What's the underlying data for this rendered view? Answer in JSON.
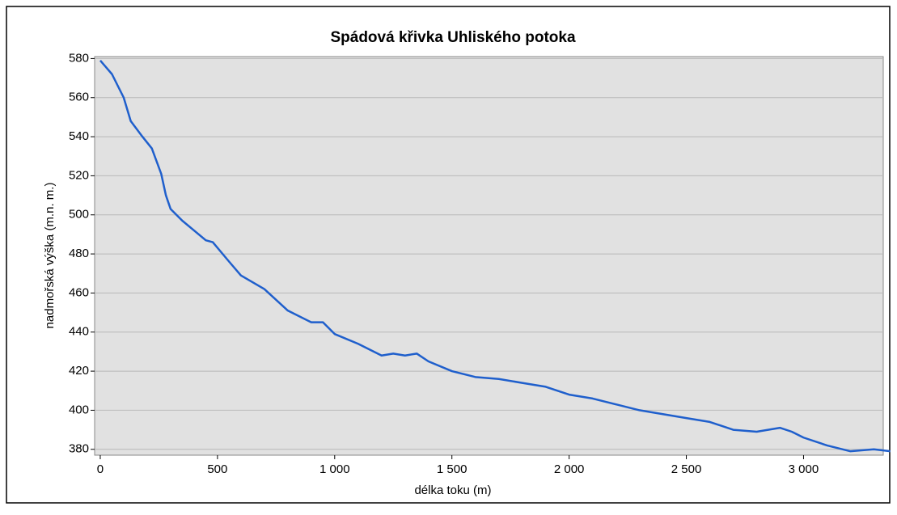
{
  "chart_data": {
    "type": "line",
    "title": "Spádová křivka Uhliského potoka",
    "x_label": "délka toku (m)",
    "y_label": "nadmořská výška (m.n. m.)",
    "x": [
      0,
      50,
      100,
      130,
      180,
      220,
      260,
      280,
      300,
      350,
      400,
      450,
      480,
      550,
      600,
      700,
      800,
      900,
      950,
      1000,
      1100,
      1200,
      1250,
      1300,
      1350,
      1400,
      1500,
      1600,
      1700,
      1800,
      1900,
      2000,
      2100,
      2200,
      2300,
      2400,
      2500,
      2600,
      2700,
      2800,
      2900,
      2950,
      3000,
      3100,
      3200,
      3300,
      3370
    ],
    "series": [
      {
        "color": "#1f5fcc",
        "values": [
          579,
          572,
          560,
          548,
          540,
          534,
          521,
          510,
          503,
          497,
          492,
          487,
          486,
          476,
          469,
          462,
          451,
          445,
          445,
          439,
          434,
          428,
          429,
          428,
          429,
          425,
          420,
          417,
          416,
          414,
          412,
          408,
          406,
          403,
          400,
          398,
          396,
          394,
          390,
          389,
          391,
          389,
          386,
          382,
          379,
          380,
          379
        ]
      }
    ],
    "xlim": [
      -24,
      3340
    ],
    "ylim": [
      377,
      581
    ],
    "xticks": [
      0,
      {
        "value": 500,
        "label": "500"
      },
      {
        "value": 1000,
        "label": "1 000"
      },
      {
        "value": 1500,
        "label": "1 500"
      },
      {
        "value": 2000,
        "label": "2 000"
      },
      {
        "value": 2500,
        "label": "2 500"
      },
      {
        "value": 3000,
        "label": "3 000"
      }
    ],
    "yticks": [
      380,
      400,
      420,
      440,
      460,
      480,
      500,
      520,
      540,
      560,
      580
    ],
    "grid": true
  }
}
